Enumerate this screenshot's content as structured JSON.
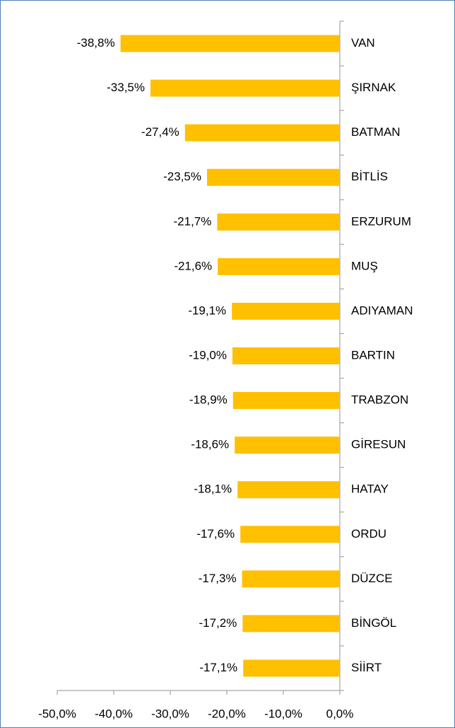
{
  "chart_data": {
    "type": "bar",
    "orientation": "horizontal",
    "categories": [
      "VAN",
      "ŞIRNAK",
      "BATMAN",
      "BİTLİS",
      "ERZURUM",
      "MUŞ",
      "ADIYAMAN",
      "BARTIN",
      "TRABZON",
      "GİRESUN",
      "HATAY",
      "ORDU",
      "DÜZCE",
      "BİNGÖL",
      "SİİRT"
    ],
    "values": [
      -38.8,
      -33.5,
      -27.4,
      -23.5,
      -21.7,
      -21.6,
      -19.1,
      -19.0,
      -18.9,
      -18.6,
      -18.1,
      -17.6,
      -17.3,
      -17.2,
      -17.1
    ],
    "value_labels": [
      "-38,8%",
      "-33,5%",
      "-27,4%",
      "-23,5%",
      "-21,7%",
      "-21,6%",
      "-19,1%",
      "-19,0%",
      "-18,9%",
      "-18,6%",
      "-18,1%",
      "-17,6%",
      "-17,3%",
      "-17,2%",
      "-17,1%"
    ],
    "color": "#ffc000",
    "xlim": [
      -50,
      0
    ],
    "xticks": [
      {
        "value": -50,
        "label": "-50,0%"
      },
      {
        "value": -40,
        "label": "-40,0%"
      },
      {
        "value": -30,
        "label": "-30,0%"
      },
      {
        "value": -20,
        "label": "-20,0%"
      },
      {
        "value": -10,
        "label": "-10,0%"
      },
      {
        "value": 0,
        "label": "0,0%"
      }
    ]
  }
}
